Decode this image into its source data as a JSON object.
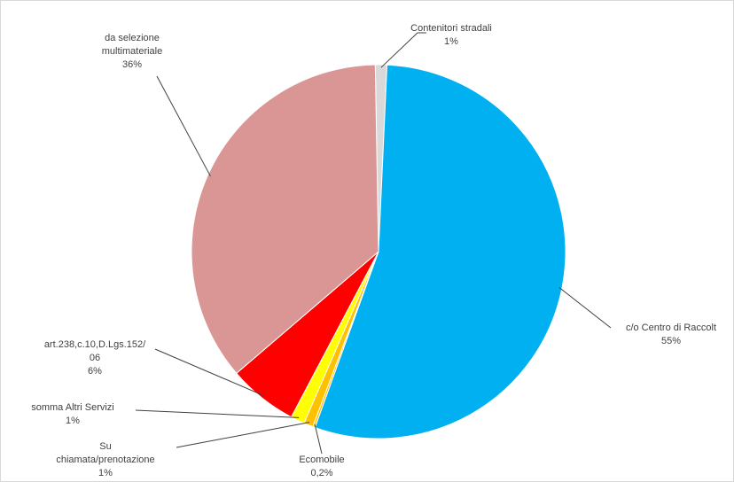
{
  "chart_data": {
    "type": "pie",
    "title": "",
    "slices": [
      {
        "label_lines": [
          "Contenitori stradali"
        ],
        "pct_text": "1%",
        "value": 1,
        "color": "#d9d9d9"
      },
      {
        "label_lines": [
          "c/o Centro di Raccolt"
        ],
        "pct_text": "55%",
        "value": 54.8,
        "color": "#00b0f0"
      },
      {
        "label_lines": [
          "Ecomobile"
        ],
        "pct_text": "0,2%",
        "value": 0.2,
        "color": "#ffc000"
      },
      {
        "label_lines": [
          "Su",
          "chiamata/prenotazione"
        ],
        "pct_text": "1%",
        "value": 0.8,
        "color": "#ffc000"
      },
      {
        "label_lines": [
          "somma Altri Servizi"
        ],
        "pct_text": "1%",
        "value": 1.2,
        "color": "#ffff00"
      },
      {
        "label_lines": [
          "art.238,c.10,D.Lgs.152/",
          "06"
        ],
        "pct_text": "6%",
        "value": 6,
        "color": "#ff0000"
      },
      {
        "label_lines": [
          "da selezione",
          "multimateriale"
        ],
        "pct_text": "36%",
        "value": 36,
        "color": "#d99694"
      }
    ],
    "start_angle_deg": -1.0,
    "direction": "clockwise",
    "legend": "none",
    "labels": "outside-with-leader-lines"
  }
}
